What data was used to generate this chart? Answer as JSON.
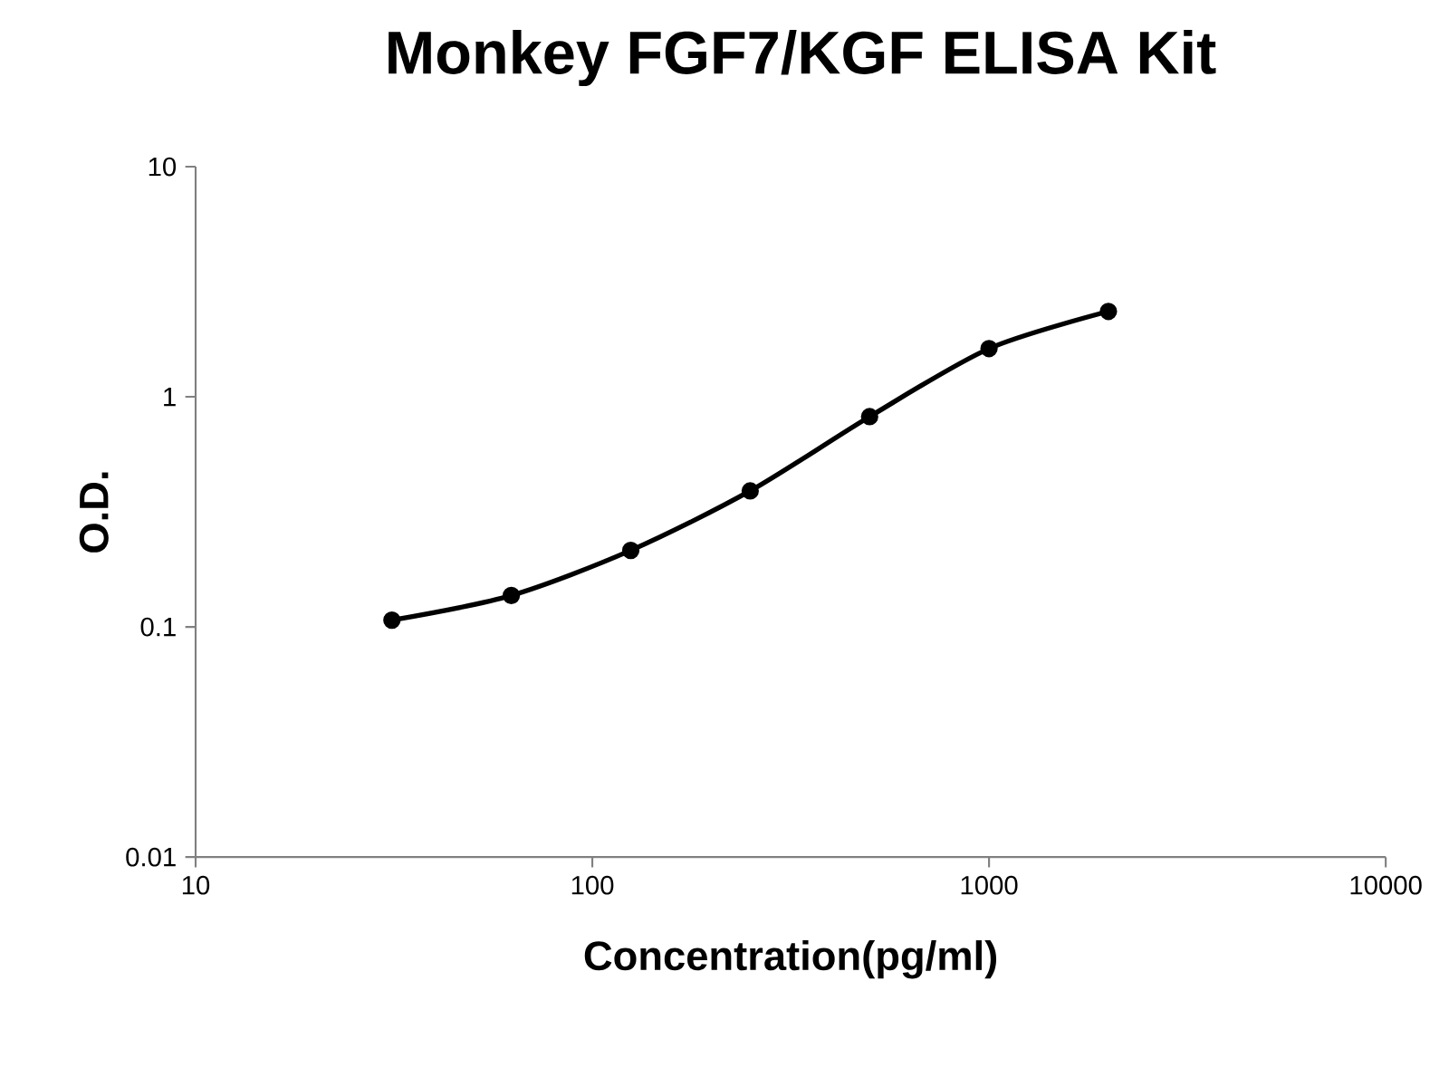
{
  "chart_data": {
    "type": "line",
    "title": "Monkey FGF7/KGF ELISA Kit",
    "xlabel": "Concentration(pg/ml)",
    "ylabel": "O.D.",
    "x": [
      31.25,
      62.5,
      125,
      250,
      500,
      1000,
      2000
    ],
    "series": [
      {
        "color": "#000000",
        "values": [
          0.107,
          0.137,
          0.215,
          0.39,
          0.82,
          1.62,
          2.35
        ]
      }
    ],
    "xlim": [
      10,
      10000
    ],
    "ylim": [
      0.01,
      10
    ],
    "xticks": [
      10,
      100,
      1000,
      10000
    ],
    "yticks": [
      0.01,
      0.1,
      1,
      10
    ],
    "log": "xy",
    "marker": "circle"
  }
}
